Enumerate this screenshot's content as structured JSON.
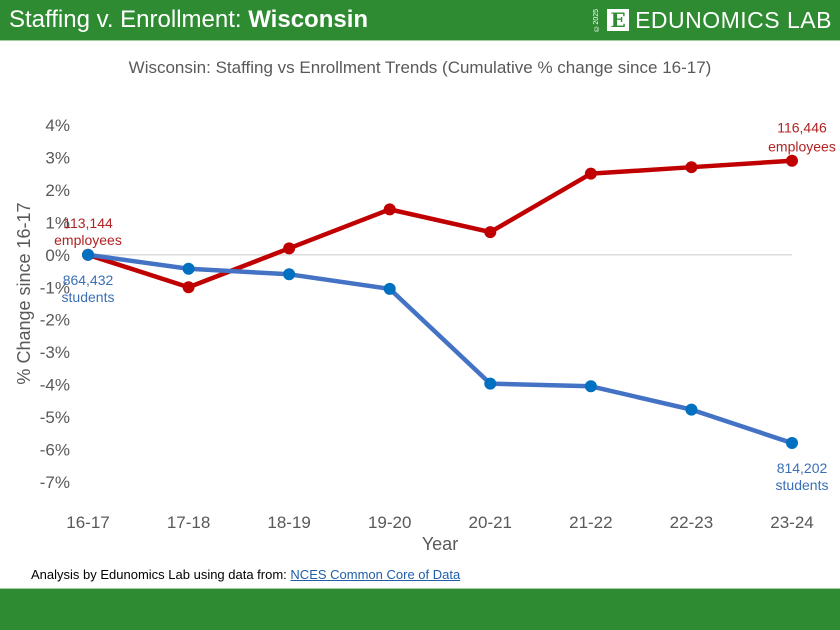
{
  "header": {
    "title_prefix": "Staffing v. Enrollment: ",
    "title_state": "Wisconsin",
    "logo_copyright": "©2025",
    "logo_letter": "E",
    "logo_text": "EDUNOMICS LAB"
  },
  "colors": {
    "brand_green": "#2e8b32",
    "staff": "#c00000",
    "students": "#4472c4",
    "student_marker": "#0070c0",
    "staff_label": "#b22222",
    "student_label": "#3a6fb5"
  },
  "chart_data": {
    "type": "line",
    "title": "Wisconsin: Staffing vs Enrollment Trends (Cumulative % change since 16-17)",
    "xlabel": "Year",
    "ylabel": "% Change since 16-17",
    "categories": [
      "16-17",
      "17-18",
      "18-19",
      "19-20",
      "20-21",
      "21-22",
      "22-23",
      "23-24"
    ],
    "ylim": [
      -7,
      4
    ],
    "yticks": [
      4,
      3,
      2,
      1,
      0,
      -1,
      -2,
      -3,
      -4,
      -5,
      -6,
      -7
    ],
    "ytick_labels": [
      "4%",
      "3%",
      "2%",
      "1%",
      "0%",
      "-1%",
      "-2%",
      "-3%",
      "-4%",
      "-5%",
      "-6%",
      "-7%"
    ],
    "zero_gridline": true,
    "legend": "none",
    "series": [
      {
        "name": "Staffing (employees)",
        "color": "#c00000",
        "values": [
          0.0,
          -1.0,
          0.2,
          1.4,
          0.7,
          2.5,
          2.7,
          2.9
        ]
      },
      {
        "name": "Enrollment (students)",
        "color": "#4472c4",
        "values": [
          0.0,
          -0.43,
          -0.6,
          -1.05,
          -3.97,
          -4.05,
          -4.77,
          -5.8
        ]
      }
    ],
    "annotations": [
      {
        "series": 0,
        "point": 0,
        "line1": "113,144",
        "line2": "employees",
        "position": "above"
      },
      {
        "series": 0,
        "point": 7,
        "line1": "116,446",
        "line2": "employees",
        "position": "above"
      },
      {
        "series": 1,
        "point": 0,
        "line1": "864,432",
        "line2": "students",
        "position": "below"
      },
      {
        "series": 1,
        "point": 7,
        "line1": "814,202",
        "line2": "students",
        "position": "below"
      }
    ]
  },
  "source": {
    "prefix": "Analysis by Edunomics Lab using data from: ",
    "link_text": "NCES Common Core of Data"
  }
}
